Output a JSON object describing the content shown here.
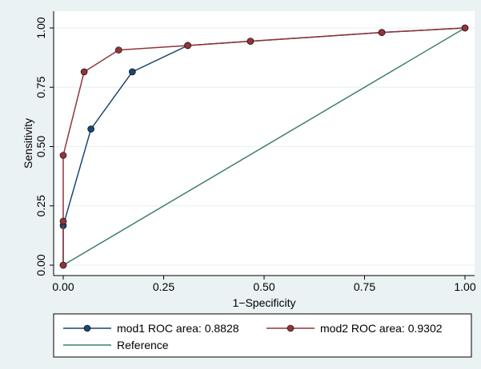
{
  "chart_data": {
    "type": "line",
    "xlabel": "1−Specificity",
    "ylabel": "Sensitivity",
    "xlim": [
      0,
      1
    ],
    "ylim": [
      0,
      1
    ],
    "xticks": [
      "0.00",
      "0.25",
      "0.50",
      "0.75",
      "1.00"
    ],
    "yticks": [
      "0.00",
      "0.25",
      "0.50",
      "0.75",
      "1.00"
    ],
    "grid": true,
    "legend_position": "bottom",
    "series": [
      {
        "name": "mod1 ROC area: 0.8828",
        "color": "#1a476f",
        "marker": "circle",
        "points": [
          {
            "x": 0.0,
            "y": 0.0
          },
          {
            "x": 0.0,
            "y": 0.167
          },
          {
            "x": 0.069,
            "y": 0.574
          },
          {
            "x": 0.172,
            "y": 0.815
          },
          {
            "x": 0.31,
            "y": 0.926
          },
          {
            "x": 0.466,
            "y": 0.944
          },
          {
            "x": 0.793,
            "y": 0.981
          },
          {
            "x": 1.0,
            "y": 1.0
          }
        ]
      },
      {
        "name": "mod2 ROC area: 0.9302",
        "color": "#90353b",
        "marker": "circle",
        "points": [
          {
            "x": 0.0,
            "y": 0.0
          },
          {
            "x": 0.0,
            "y": 0.185
          },
          {
            "x": 0.0,
            "y": 0.463
          },
          {
            "x": 0.052,
            "y": 0.815
          },
          {
            "x": 0.138,
            "y": 0.907
          },
          {
            "x": 0.31,
            "y": 0.926
          },
          {
            "x": 0.466,
            "y": 0.944
          },
          {
            "x": 0.793,
            "y": 0.981
          },
          {
            "x": 1.0,
            "y": 1.0
          }
        ]
      },
      {
        "name": "Reference",
        "color": "#3e7f6a",
        "marker": "none",
        "points": [
          {
            "x": 0.0,
            "y": 0.0
          },
          {
            "x": 1.0,
            "y": 1.0
          }
        ]
      }
    ]
  }
}
